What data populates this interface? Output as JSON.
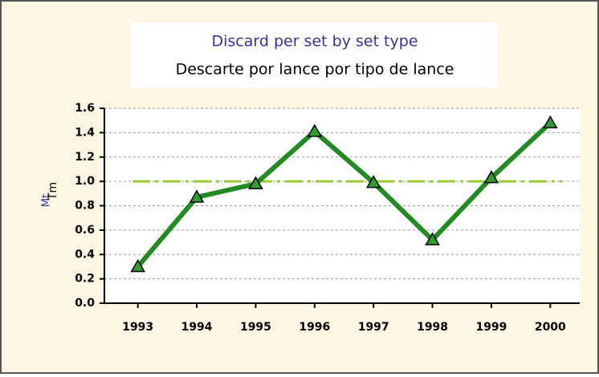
{
  "chart_data": {
    "type": "line",
    "title": "Discard per set by set type",
    "subtitle": "Descarte por lance por tipo de lance",
    "y_label": "Mt",
    "y_label_secondary": "Tm",
    "categories": [
      "1993",
      "1994",
      "1995",
      "1996",
      "1997",
      "1998",
      "1999",
      "2000"
    ],
    "series": [
      {
        "name": "Discard per set",
        "color": "#228b22",
        "marker_color": "#2e9e2e",
        "values": [
          0.3,
          0.87,
          0.98,
          1.41,
          0.99,
          0.52,
          1.03,
          1.48
        ]
      }
    ],
    "reference_line": {
      "value": 1.0,
      "color": "#99cc33"
    },
    "ylim": [
      0,
      1.6
    ],
    "yticks": [
      {
        "value": 0,
        "label": "0.0"
      },
      {
        "value": 0.2,
        "label": "0.2"
      },
      {
        "value": 0.4,
        "label": "0.4"
      },
      {
        "value": 0.6,
        "label": "0.6"
      },
      {
        "value": 0.8,
        "label": "0.8"
      },
      {
        "value": 1.0,
        "label": "1.0"
      },
      {
        "value": 1.2,
        "label": "1.2"
      },
      {
        "value": 1.4,
        "label": "1.4"
      },
      {
        "value": 1.6,
        "label": "1.6"
      }
    ],
    "grid": true
  }
}
